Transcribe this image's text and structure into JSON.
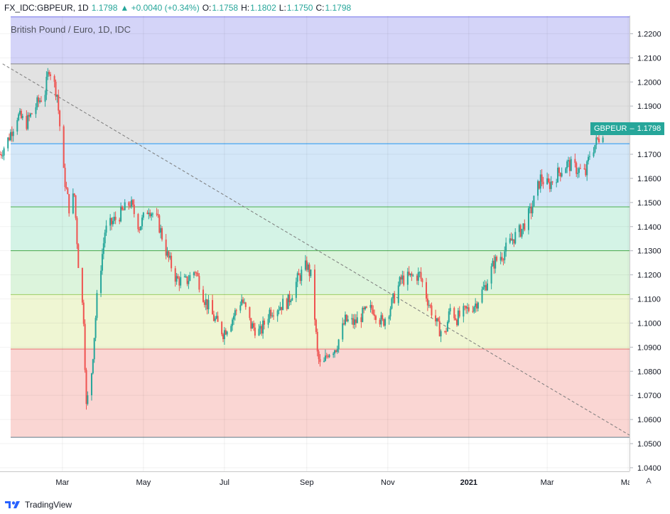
{
  "header": {
    "symbol": "FX_IDC:GBPEUR, 1D",
    "last": "1.1798",
    "change": "▲ +0.0040 (+0.34%)",
    "o_label": "O:",
    "o_value": "1.1758",
    "h_label": "H:",
    "h_value": "1.1802",
    "l_label": "L:",
    "l_value": "1.1750",
    "c_label": "C:",
    "c_value": "1.1798"
  },
  "legend_title": "British Pound / Euro, 1D, IDC",
  "price_tag": {
    "name": "GBPEUR",
    "value": "1.1798"
  },
  "scale_button": "A",
  "footer": {
    "brand": "TradingView"
  },
  "colors": {
    "up": "#26a69a",
    "down": "#ef5350",
    "fib_100": "#7272e8",
    "fib_0": "#888888"
  },
  "chart_data": {
    "type": "candlestick",
    "title": "British Pound / Euro, 1D, IDC",
    "y_ticks": [
      "1.2200",
      "1.2100",
      "1.2000",
      "1.1900",
      "1.1800",
      "1.1700",
      "1.1600",
      "1.1500",
      "1.1400",
      "1.1300",
      "1.1200",
      "1.1100",
      "1.1000",
      "1.0900",
      "1.0800",
      "1.0700",
      "1.0600",
      "1.0500",
      "1.0400"
    ],
    "x_ticks": [
      {
        "label": "Mar",
        "date": "2020-03-01"
      },
      {
        "label": "May",
        "date": "2020-05-01"
      },
      {
        "label": "Jul",
        "date": "2020-07-01"
      },
      {
        "label": "Sep",
        "date": "2020-09-01"
      },
      {
        "label": "Nov",
        "date": "2020-11-01"
      },
      {
        "label": "2021",
        "date": "2021-01-01"
      },
      {
        "label": "Mar",
        "date": "2021-03-01"
      },
      {
        "label": "May",
        "date": "2021-05-01"
      }
    ],
    "ylim": [
      1.0385,
      1.2275
    ],
    "xlim": [
      "2020-01-14",
      "2021-05-02"
    ],
    "close_series": [
      {
        "date": "2020-01-14",
        "close": 1.17
      },
      {
        "date": "2020-01-20",
        "close": 1.176
      },
      {
        "date": "2020-01-27",
        "close": 1.186
      },
      {
        "date": "2020-02-03",
        "close": 1.183
      },
      {
        "date": "2020-02-10",
        "close": 1.19
      },
      {
        "date": "2020-02-17",
        "close": 1.196
      },
      {
        "date": "2020-02-20",
        "close": 1.206
      },
      {
        "date": "2020-02-26",
        "close": 1.195
      },
      {
        "date": "2020-03-02",
        "close": 1.162
      },
      {
        "date": "2020-03-06",
        "close": 1.148
      },
      {
        "date": "2020-03-10",
        "close": 1.153
      },
      {
        "date": "2020-03-13",
        "close": 1.125
      },
      {
        "date": "2020-03-17",
        "close": 1.102
      },
      {
        "date": "2020-03-19",
        "close": 1.065
      },
      {
        "date": "2020-03-23",
        "close": 1.08
      },
      {
        "date": "2020-03-27",
        "close": 1.11
      },
      {
        "date": "2020-04-02",
        "close": 1.138
      },
      {
        "date": "2020-04-08",
        "close": 1.142
      },
      {
        "date": "2020-04-15",
        "close": 1.146
      },
      {
        "date": "2020-04-21",
        "close": 1.15
      },
      {
        "date": "2020-04-28",
        "close": 1.14
      },
      {
        "date": "2020-05-05",
        "close": 1.148
      },
      {
        "date": "2020-05-12",
        "close": 1.142
      },
      {
        "date": "2020-05-19",
        "close": 1.128
      },
      {
        "date": "2020-05-26",
        "close": 1.118
      },
      {
        "date": "2020-06-02",
        "close": 1.117
      },
      {
        "date": "2020-06-09",
        "close": 1.122
      },
      {
        "date": "2020-06-16",
        "close": 1.11
      },
      {
        "date": "2020-06-23",
        "close": 1.102
      },
      {
        "date": "2020-06-30",
        "close": 1.096
      },
      {
        "date": "2020-07-07",
        "close": 1.102
      },
      {
        "date": "2020-07-14",
        "close": 1.11
      },
      {
        "date": "2020-07-21",
        "close": 1.099
      },
      {
        "date": "2020-07-28",
        "close": 1.096
      },
      {
        "date": "2020-08-04",
        "close": 1.105
      },
      {
        "date": "2020-08-11",
        "close": 1.107
      },
      {
        "date": "2020-08-18",
        "close": 1.109
      },
      {
        "date": "2020-08-25",
        "close": 1.118
      },
      {
        "date": "2020-09-01",
        "close": 1.124
      },
      {
        "date": "2020-09-05",
        "close": 1.118
      },
      {
        "date": "2020-09-09",
        "close": 1.087
      },
      {
        "date": "2020-09-12",
        "close": 1.08
      },
      {
        "date": "2020-09-17",
        "close": 1.088
      },
      {
        "date": "2020-09-23",
        "close": 1.09
      },
      {
        "date": "2020-09-30",
        "close": 1.101
      },
      {
        "date": "2020-10-07",
        "close": 1.1
      },
      {
        "date": "2020-10-14",
        "close": 1.104
      },
      {
        "date": "2020-10-21",
        "close": 1.106
      },
      {
        "date": "2020-10-28",
        "close": 1.1
      },
      {
        "date": "2020-11-04",
        "close": 1.108
      },
      {
        "date": "2020-11-11",
        "close": 1.118
      },
      {
        "date": "2020-11-18",
        "close": 1.119
      },
      {
        "date": "2020-11-25",
        "close": 1.12
      },
      {
        "date": "2020-12-02",
        "close": 1.108
      },
      {
        "date": "2020-12-09",
        "close": 1.098
      },
      {
        "date": "2020-12-14",
        "close": 1.095
      },
      {
        "date": "2020-12-18",
        "close": 1.106
      },
      {
        "date": "2020-12-23",
        "close": 1.102
      },
      {
        "date": "2020-12-30",
        "close": 1.105
      },
      {
        "date": "2021-01-06",
        "close": 1.108
      },
      {
        "date": "2021-01-13",
        "close": 1.115
      },
      {
        "date": "2021-01-20",
        "close": 1.125
      },
      {
        "date": "2021-01-27",
        "close": 1.129
      },
      {
        "date": "2021-02-03",
        "close": 1.135
      },
      {
        "date": "2021-02-10",
        "close": 1.139
      },
      {
        "date": "2021-02-17",
        "close": 1.147
      },
      {
        "date": "2021-02-24",
        "close": 1.16
      },
      {
        "date": "2021-03-02",
        "close": 1.157
      },
      {
        "date": "2021-03-09",
        "close": 1.162
      },
      {
        "date": "2021-03-16",
        "close": 1.166
      },
      {
        "date": "2021-03-23",
        "close": 1.164
      },
      {
        "date": "2021-03-30",
        "close": 1.162
      },
      {
        "date": "2021-04-02",
        "close": 1.17
      },
      {
        "date": "2021-04-08",
        "close": 1.176
      },
      {
        "date": "2021-04-12",
        "close": 1.1798
      }
    ],
    "fib_levels": [
      1.227,
      1.2075,
      1.1744,
      1.1482,
      1.13,
      1.1118,
      1.0892,
      1.0526
    ],
    "trend_line": {
      "start": {
        "date": "2020-01-16",
        "price": 1.2075
      },
      "end": {
        "date": "2021-05-02",
        "price": 1.0535
      }
    },
    "last_price": 1.1798
  }
}
